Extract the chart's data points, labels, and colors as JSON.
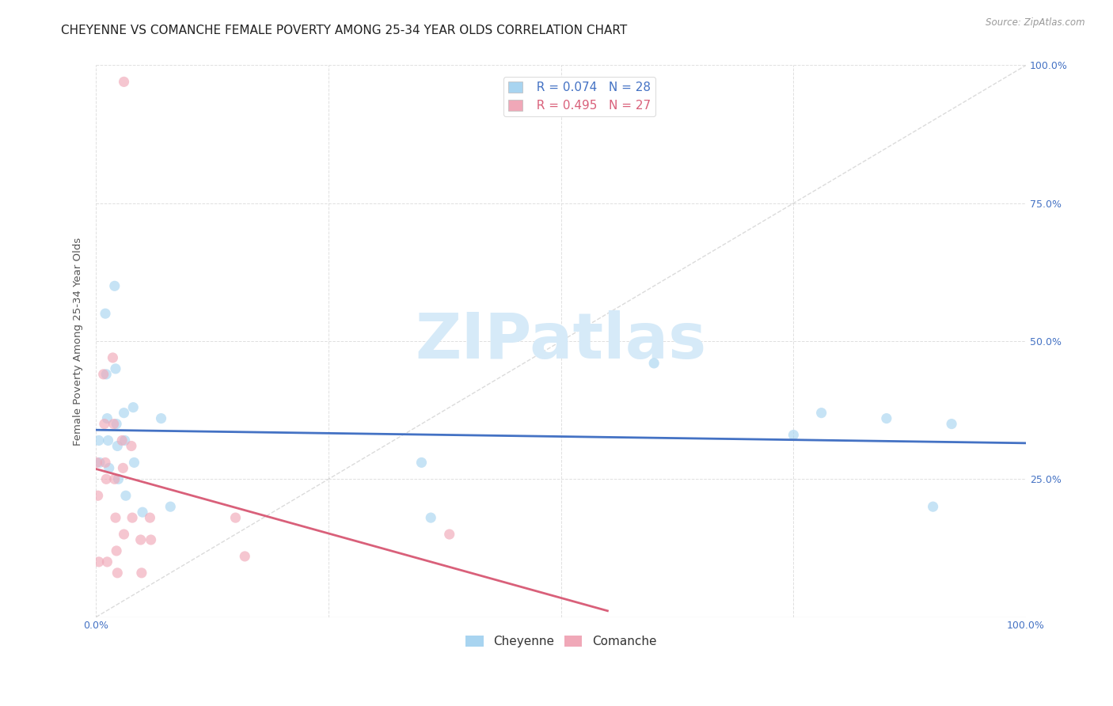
{
  "title": "CHEYENNE VS COMANCHE FEMALE POVERTY AMONG 25-34 YEAR OLDS CORRELATION CHART",
  "source": "Source: ZipAtlas.com",
  "ylabel": "Female Poverty Among 25-34 Year Olds",
  "xlim": [
    0,
    1.0
  ],
  "ylim": [
    0,
    1.0
  ],
  "background_color": "#ffffff",
  "grid_color": "#e0e0e0",
  "watermark_text": "ZIPatlas",
  "watermark_color": "#d6eaf8",
  "cheyenne_color": "#a8d4f0",
  "comanche_color": "#f0a8b8",
  "cheyenne_line_color": "#4472c4",
  "comanche_line_color": "#d9607a",
  "diagonal_color": "#cccccc",
  "legend_cheyenne_R": "R = 0.074",
  "legend_cheyenne_N": "N = 28",
  "legend_comanche_R": "R = 0.495",
  "legend_comanche_N": "N = 27",
  "cheyenne_x": [
    0.003,
    0.004,
    0.01,
    0.011,
    0.012,
    0.013,
    0.014,
    0.02,
    0.021,
    0.022,
    0.023,
    0.024,
    0.03,
    0.031,
    0.032,
    0.04,
    0.041,
    0.05,
    0.07,
    0.08,
    0.35,
    0.36,
    0.6,
    0.75,
    0.78,
    0.85,
    0.9,
    0.92
  ],
  "cheyenne_y": [
    0.32,
    0.28,
    0.55,
    0.44,
    0.36,
    0.32,
    0.27,
    0.6,
    0.45,
    0.35,
    0.31,
    0.25,
    0.37,
    0.32,
    0.22,
    0.38,
    0.28,
    0.19,
    0.36,
    0.2,
    0.28,
    0.18,
    0.46,
    0.33,
    0.37,
    0.36,
    0.2,
    0.35
  ],
  "comanche_x": [
    0.001,
    0.002,
    0.003,
    0.008,
    0.009,
    0.01,
    0.011,
    0.012,
    0.018,
    0.019,
    0.02,
    0.021,
    0.022,
    0.023,
    0.028,
    0.029,
    0.03,
    0.038,
    0.039,
    0.048,
    0.049,
    0.058,
    0.059,
    0.03,
    0.15,
    0.16,
    0.38
  ],
  "comanche_y": [
    0.28,
    0.22,
    0.1,
    0.44,
    0.35,
    0.28,
    0.25,
    0.1,
    0.47,
    0.35,
    0.25,
    0.18,
    0.12,
    0.08,
    0.32,
    0.27,
    0.15,
    0.31,
    0.18,
    0.14,
    0.08,
    0.18,
    0.14,
    0.97,
    0.18,
    0.11,
    0.15
  ],
  "marker_size": 90,
  "marker_alpha": 0.65,
  "title_fontsize": 11,
  "axis_label_fontsize": 9.5,
  "tick_fontsize": 9,
  "legend_fontsize": 11,
  "cheyenne_trend_x0": 0.0,
  "cheyenne_trend_x1": 1.0,
  "comanche_trend_x0": 0.0,
  "comanche_trend_x1": 0.55
}
